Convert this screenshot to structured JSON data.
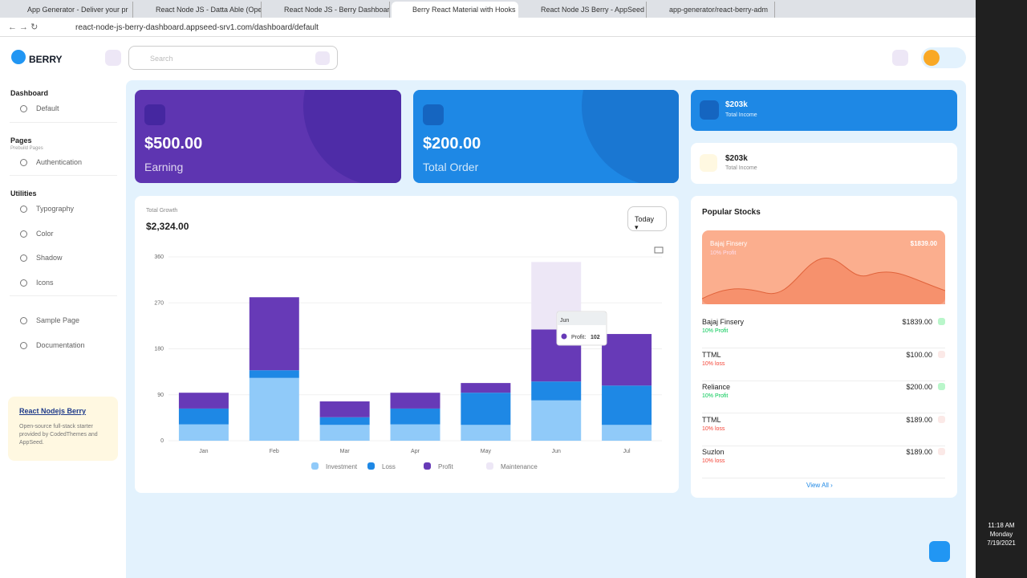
{
  "browser": {
    "tabs": [
      "App Generator - Deliver your pr",
      "React Node JS - Datta Able (Ope",
      "React Node JS - Berry Dashboar",
      "Berry React Material with Hooks",
      "React Node JS Berry - AppSeed",
      "app-generator/react-berry-adm"
    ],
    "url": "react-node-js-berry-dashboard.appseed-srv1.com/dashboard/default"
  },
  "taskbar": {
    "time": "11:18 AM",
    "day": "Monday",
    "date": "7/19/2021"
  },
  "header": {
    "logo": "BERRY",
    "search": "Search"
  },
  "sidebar": {
    "groups": [
      {
        "title": "Dashboard",
        "items": [
          "Default"
        ]
      },
      {
        "title": "Pages",
        "caption": "Prebuild Pages",
        "items": [
          "Authentication"
        ]
      },
      {
        "title": "Utilities",
        "items": [
          "Typography",
          "Color",
          "Shadow",
          "Icons"
        ]
      }
    ],
    "extra": [
      "Sample Page",
      "Documentation"
    ],
    "promo": {
      "title": "React Nodejs Berry",
      "text": "Open-source full-stack starter provided by CodedThemes and AppSeed."
    }
  },
  "cards": {
    "earning": {
      "value": "$500.00",
      "label": "Earning"
    },
    "order": {
      "value": "$200.00",
      "label": "Total Order"
    },
    "income": [
      {
        "value": "$203k",
        "label": "Total Income"
      },
      {
        "value": "$203k",
        "label": "Total Income"
      }
    ]
  },
  "growth": {
    "title": "Total Growth",
    "total": "$2,324.00",
    "period": "Today"
  },
  "chart_data": {
    "type": "stacked-bar",
    "categories": [
      "Jan",
      "Feb",
      "Mar",
      "Apr",
      "May",
      "Jun",
      "Jul"
    ],
    "series": [
      {
        "name": "Investment",
        "color": "#90caf9",
        "values": [
          32,
          123,
          31,
          32,
          31,
          79,
          31
        ]
      },
      {
        "name": "Loss",
        "color": "#1e88e5",
        "values": [
          31,
          15,
          15,
          31,
          63,
          37,
          77
        ]
      },
      {
        "name": "Profit",
        "color": "#673ab7",
        "values": [
          31,
          143,
          31,
          31,
          19,
          102,
          101
        ]
      },
      {
        "name": "Maintenance",
        "color": "#ede7f6",
        "values": [
          0,
          0,
          0,
          0,
          0,
          132,
          0
        ]
      }
    ],
    "ylim": [
      0,
      360
    ],
    "yticks": [
      0,
      90,
      180,
      270,
      360
    ],
    "grid": true,
    "legend": "bottom",
    "tooltip": {
      "label": "Profit:"
    }
  },
  "stocks": {
    "title": "Popular Stocks",
    "featured": {
      "name": "Bajaj Finsery",
      "price": "$1839.00",
      "change": "10% Profit"
    },
    "items": [
      {
        "name": "Bajaj Finsery",
        "price": "$1839.00",
        "change": "10% Profit"
      },
      {
        "name": "TTML",
        "price": "$100.00",
        "change": "10% loss"
      },
      {
        "name": "Reliance",
        "price": "$200.00",
        "change": "10% Profit"
      },
      {
        "name": "TTML",
        "price": "$189.00",
        "change": "10% loss"
      },
      {
        "name": "Suzlon",
        "price": "$189.00",
        "change": "10% loss"
      }
    ],
    "more": "View All"
  }
}
